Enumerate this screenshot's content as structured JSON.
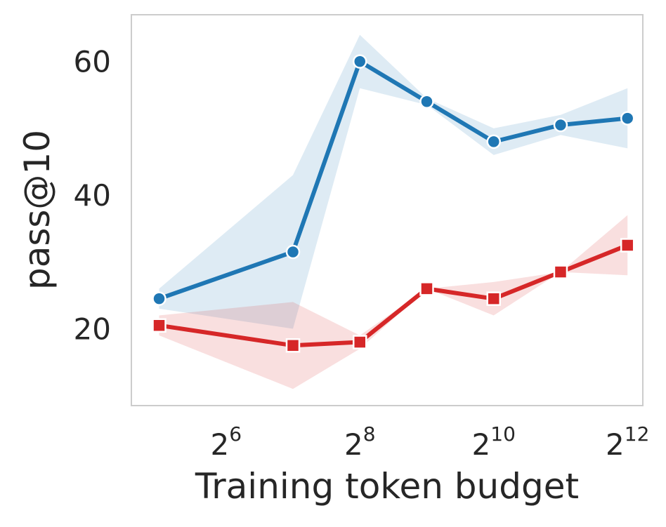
{
  "chart_data": {
    "type": "line",
    "title": "",
    "xlabel": "Training token budget",
    "ylabel": "pass@10",
    "x_scale": "log2",
    "x": [
      32,
      128,
      256,
      512,
      1024,
      2048,
      4096
    ],
    "xlim": [
      24,
      4800
    ],
    "ylim": [
      8.5,
      67
    ],
    "x_ticks": [
      {
        "value": 64,
        "base": "2",
        "exp": "6"
      },
      {
        "value": 256,
        "base": "2",
        "exp": "8"
      },
      {
        "value": 1024,
        "base": "2",
        "exp": "10"
      },
      {
        "value": 4096,
        "base": "2",
        "exp": "12"
      }
    ],
    "y_ticks": [
      {
        "value": 20,
        "label": "20"
      },
      {
        "value": 40,
        "label": "40"
      },
      {
        "value": 60,
        "label": "60"
      }
    ],
    "grid": false,
    "legend": "none",
    "series": [
      {
        "color": "#1f77b4",
        "marker": "circle",
        "values": [
          24.5,
          31.5,
          60.0,
          54.0,
          48.0,
          50.5,
          51.5
        ],
        "band_lower": [
          23.0,
          20.0,
          56.0,
          53.5,
          46.0,
          49.0,
          47.0
        ],
        "band_upper": [
          26.0,
          43.0,
          64.0,
          54.5,
          50.0,
          52.0,
          56.0
        ]
      },
      {
        "color": "#d62728",
        "marker": "square",
        "values": [
          20.5,
          17.5,
          18.0,
          26.0,
          24.5,
          28.5,
          32.5
        ],
        "band_lower": [
          19.0,
          11.0,
          17.0,
          26.0,
          22.0,
          28.5,
          28.0
        ],
        "band_upper": [
          22.0,
          24.0,
          19.0,
          26.0,
          27.0,
          28.5,
          37.0
        ]
      }
    ]
  }
}
